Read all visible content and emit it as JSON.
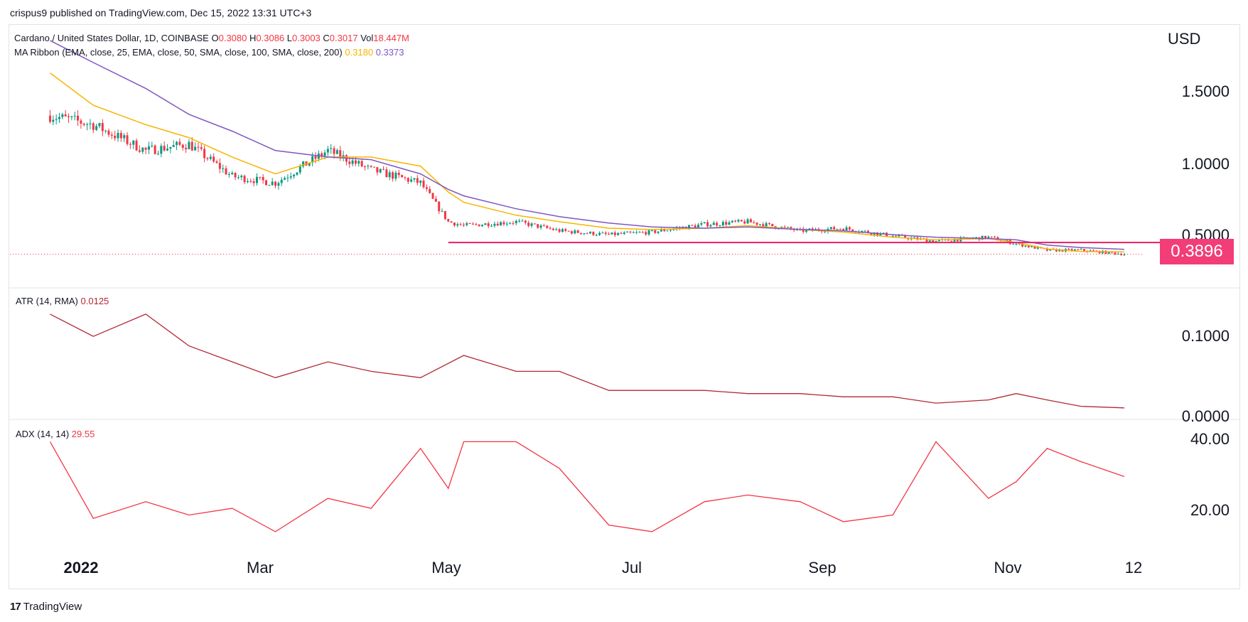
{
  "publisher_line": "crispus9 published on TradingView.com, Dec 15, 2022 13:31 UTC+3",
  "brand": {
    "logo": "17",
    "name": "TradingView"
  },
  "colors": {
    "up": "#089981",
    "down": "#f23645",
    "ema": "#f7b500",
    "sma": "#7e57c2",
    "atr": "#b22833",
    "adx": "#f23645",
    "support": "#e91e63",
    "badge": "#f23d78"
  },
  "price_legend": {
    "title": "Cardano / United States Dollar, 1D, COINBASE",
    "o_label": "O",
    "o_value": "0.3080",
    "h_label": "H",
    "h_value": "0.3086",
    "l_label": "L",
    "l_value": "0.3003",
    "c_label": "C",
    "c_value": "0.3017",
    "vol_label": "Vol",
    "vol_value": "18.447M"
  },
  "ma_legend": {
    "title": "MA Ribbon (EMA, close, 25, EMA, close, 50, SMA, close, 100, SMA, close, 200)",
    "v1": "0.3180",
    "v2": "0.3373"
  },
  "atr_legend": {
    "title": "ATR (14, RMA)",
    "value": "0.0125"
  },
  "adx_legend": {
    "title": "ADX (14, 14)",
    "value": "29.55"
  },
  "currency": "USD",
  "support_label": "0.3896",
  "chart_data": [
    {
      "type": "line",
      "panel": "price",
      "currency": "USD",
      "y_ticks": [
        "1.5000",
        "1.0000",
        "0.5000"
      ],
      "x_ticks": [
        "2022",
        "Mar",
        "May",
        "Jul",
        "Sep",
        "Nov",
        "12"
      ],
      "x": [
        "2022-01-01",
        "2022-01-15",
        "2022-02-01",
        "2022-02-15",
        "2022-03-01",
        "2022-03-15",
        "2022-04-01",
        "2022-04-15",
        "2022-05-01",
        "2022-05-10",
        "2022-05-15",
        "2022-06-01",
        "2022-06-15",
        "2022-07-01",
        "2022-07-15",
        "2022-08-01",
        "2022-08-15",
        "2022-09-01",
        "2022-09-15",
        "2022-10-01",
        "2022-10-15",
        "2022-11-01",
        "2022-11-10",
        "2022-11-20",
        "2022-12-01",
        "2022-12-15"
      ],
      "series": [
        {
          "values": [
            1.37,
            1.3,
            1.1,
            1.15,
            0.9,
            0.85,
            1.1,
            0.95,
            0.85,
            0.55,
            0.52,
            0.55,
            0.48,
            0.45,
            0.47,
            0.53,
            0.55,
            0.48,
            0.5,
            0.44,
            0.4,
            0.43,
            0.38,
            0.33,
            0.33,
            0.3
          ]
        },
        {
          "values": [
            1.7,
            1.45,
            1.3,
            1.2,
            1.05,
            0.92,
            1.05,
            1.05,
            0.98,
            0.78,
            0.7,
            0.6,
            0.55,
            0.5,
            0.49,
            0.5,
            0.52,
            0.49,
            0.47,
            0.43,
            0.41,
            0.42,
            0.39,
            0.34,
            0.32,
            0.318
          ]
        },
        {
          "values": [
            1.95,
            1.78,
            1.58,
            1.38,
            1.25,
            1.1,
            1.05,
            1.03,
            0.92,
            0.8,
            0.75,
            0.65,
            0.59,
            0.54,
            0.51,
            0.5,
            0.51,
            0.49,
            0.48,
            0.45,
            0.43,
            0.42,
            0.41,
            0.37,
            0.35,
            0.337
          ]
        }
      ],
      "support_level": 0.3896,
      "ylim": [
        0.22,
        2.0
      ]
    },
    {
      "type": "line",
      "panel": "atr",
      "y_ticks": [
        "0.1000",
        "0.0000"
      ],
      "ylim": [
        0.0,
        0.18
      ],
      "x": [
        "2022-01-01",
        "2022-01-15",
        "2022-02-01",
        "2022-02-15",
        "2022-03-01",
        "2022-03-15",
        "2022-04-01",
        "2022-04-15",
        "2022-05-01",
        "2022-05-15",
        "2022-06-01",
        "2022-06-15",
        "2022-07-01",
        "2022-07-15",
        "2022-08-01",
        "2022-08-15",
        "2022-09-01",
        "2022-09-15",
        "2022-10-01",
        "2022-10-15",
        "2022-11-01",
        "2022-11-10",
        "2022-11-20",
        "2022-12-01",
        "2022-12-15"
      ],
      "values": [
        0.16,
        0.125,
        0.16,
        0.11,
        0.085,
        0.06,
        0.085,
        0.07,
        0.06,
        0.095,
        0.07,
        0.07,
        0.04,
        0.04,
        0.04,
        0.035,
        0.035,
        0.03,
        0.03,
        0.02,
        0.025,
        0.035,
        0.025,
        0.015,
        0.0125
      ]
    },
    {
      "type": "line",
      "panel": "adx",
      "y_ticks": [
        "40.00",
        "20.00"
      ],
      "ylim": [
        10,
        42
      ],
      "x": [
        "2022-01-01",
        "2022-01-15",
        "2022-02-01",
        "2022-02-15",
        "2022-03-01",
        "2022-03-15",
        "2022-04-01",
        "2022-04-15",
        "2022-05-01",
        "2022-05-10",
        "2022-05-15",
        "2022-06-01",
        "2022-06-15",
        "2022-07-01",
        "2022-07-15",
        "2022-08-01",
        "2022-08-15",
        "2022-09-01",
        "2022-09-15",
        "2022-10-01",
        "2022-10-15",
        "2022-11-01",
        "2022-11-10",
        "2022-11-20",
        "2022-12-01",
        "2022-12-15"
      ],
      "values": [
        40,
        17,
        22,
        18,
        20,
        13,
        23,
        20,
        38,
        26,
        40,
        40,
        32,
        15,
        13,
        22,
        24,
        22,
        16,
        18,
        40,
        23,
        28,
        38,
        34,
        29.55
      ]
    }
  ]
}
